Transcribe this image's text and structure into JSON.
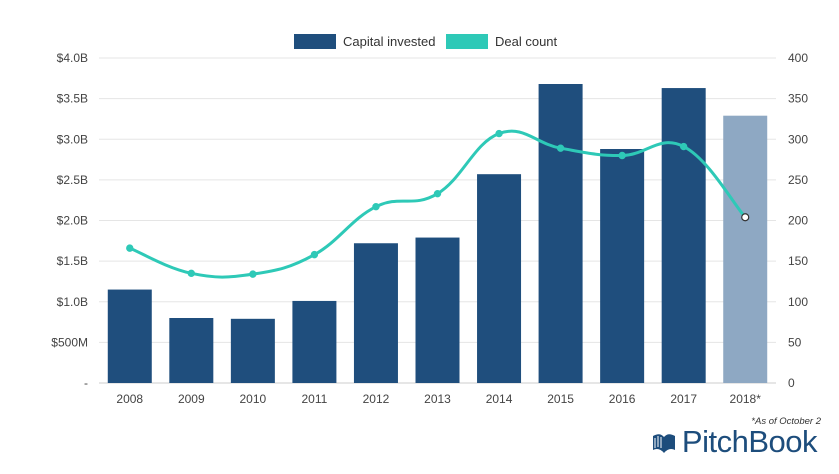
{
  "chart_data": {
    "type": "bar",
    "categories": [
      "2008",
      "2009",
      "2010",
      "2011",
      "2012",
      "2013",
      "2014",
      "2015",
      "2016",
      "2017",
      "2018*"
    ],
    "series": [
      {
        "name": "Capital invested",
        "type": "bar",
        "axis": "left",
        "values": [
          1.15,
          0.8,
          0.79,
          1.01,
          1.72,
          1.79,
          2.57,
          3.68,
          2.88,
          3.63,
          3.29
        ],
        "unit": "$B"
      },
      {
        "name": "Deal count",
        "type": "line",
        "axis": "right",
        "values": [
          166,
          135,
          134,
          158,
          217,
          233,
          307,
          289,
          280,
          291,
          204
        ]
      }
    ],
    "y_left": {
      "ylim": [
        0,
        4.0
      ],
      "tick_values": [
        0,
        0.5,
        1.0,
        1.5,
        2.0,
        2.5,
        3.0,
        3.5,
        4.0
      ],
      "tick_labels": [
        "-",
        "$500M",
        "$1.0B",
        "$1.5B",
        "$2.0B",
        "$2.5B",
        "$3.0B",
        "$3.5B",
        "$4.0B"
      ]
    },
    "y_right": {
      "ylim": [
        0,
        400
      ],
      "tick_values": [
        0,
        50,
        100,
        150,
        200,
        250,
        300,
        350,
        400
      ],
      "tick_labels": [
        "0",
        "50",
        "100",
        "150",
        "200",
        "250",
        "300",
        "350",
        "400"
      ]
    },
    "highlight_last_category": true,
    "grid": true,
    "legend_position": "top-center"
  },
  "colors": {
    "bar": "#1f4e7d",
    "bar_partial": "#8ea8c3",
    "line": "#2ec9b7",
    "grid": "#e5e5e5",
    "brand": "#1d4d7c"
  },
  "footnote": "*As of October 2",
  "brand": {
    "name": "PitchBook",
    "icon": "book-logo-icon"
  }
}
